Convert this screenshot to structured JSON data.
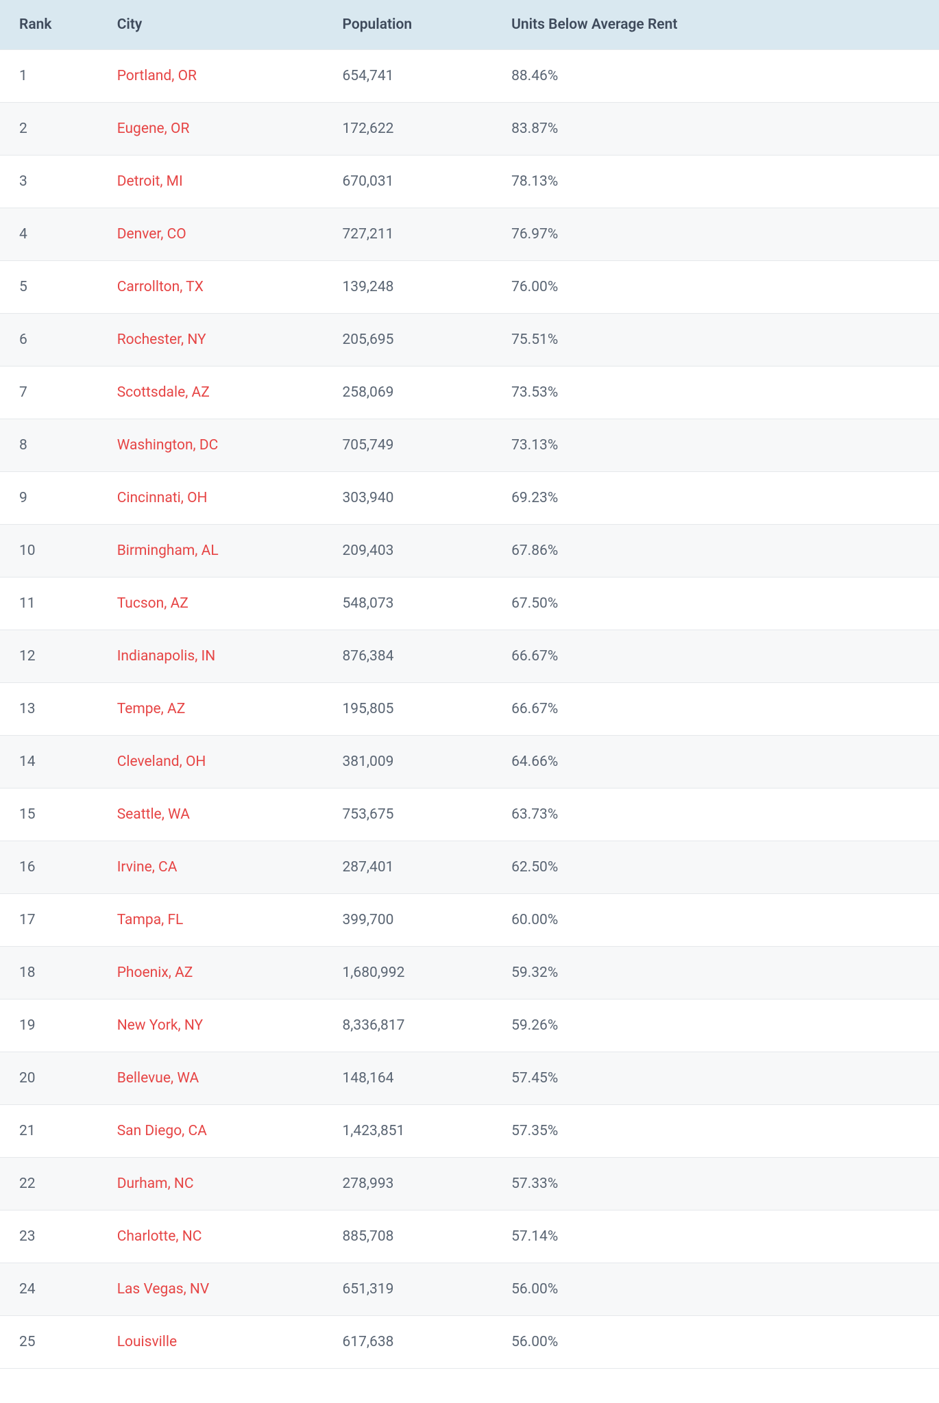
{
  "table": {
    "columns": [
      {
        "key": "rank",
        "label": "Rank"
      },
      {
        "key": "city",
        "label": "City"
      },
      {
        "key": "population",
        "label": "Population"
      },
      {
        "key": "units",
        "label": "Units Below Average Rent"
      }
    ],
    "rows": [
      {
        "rank": "1",
        "city": "Portland, OR",
        "population": "654,741",
        "units": "88.46%"
      },
      {
        "rank": "2",
        "city": "Eugene, OR",
        "population": "172,622",
        "units": "83.87%"
      },
      {
        "rank": "3",
        "city": "Detroit, MI",
        "population": "670,031",
        "units": "78.13%"
      },
      {
        "rank": "4",
        "city": "Denver, CO",
        "population": "727,211",
        "units": "76.97%"
      },
      {
        "rank": "5",
        "city": "Carrollton, TX",
        "population": "139,248",
        "units": "76.00%"
      },
      {
        "rank": "6",
        "city": "Rochester, NY",
        "population": "205,695",
        "units": "75.51%"
      },
      {
        "rank": "7",
        "city": "Scottsdale, AZ",
        "population": "258,069",
        "units": "73.53%"
      },
      {
        "rank": "8",
        "city": "Washington, DC",
        "population": "705,749",
        "units": "73.13%"
      },
      {
        "rank": "9",
        "city": "Cincinnati, OH",
        "population": "303,940",
        "units": "69.23%"
      },
      {
        "rank": "10",
        "city": "Birmingham, AL",
        "population": "209,403",
        "units": "67.86%"
      },
      {
        "rank": "11",
        "city": "Tucson, AZ",
        "population": "548,073",
        "units": "67.50%"
      },
      {
        "rank": "12",
        "city": "Indianapolis, IN",
        "population": "876,384",
        "units": "66.67%"
      },
      {
        "rank": "13",
        "city": "Tempe, AZ",
        "population": "195,805",
        "units": "66.67%"
      },
      {
        "rank": "14",
        "city": "Cleveland, OH",
        "population": "381,009",
        "units": "64.66%"
      },
      {
        "rank": "15",
        "city": "Seattle, WA",
        "population": "753,675",
        "units": "63.73%"
      },
      {
        "rank": "16",
        "city": "Irvine, CA",
        "population": "287,401",
        "units": "62.50%"
      },
      {
        "rank": "17",
        "city": "Tampa, FL",
        "population": "399,700",
        "units": "60.00%"
      },
      {
        "rank": "18",
        "city": "Phoenix, AZ",
        "population": "1,680,992",
        "units": "59.32%"
      },
      {
        "rank": "19",
        "city": "New York, NY",
        "population": "8,336,817",
        "units": "59.26%"
      },
      {
        "rank": "20",
        "city": "Bellevue, WA",
        "population": "148,164",
        "units": "57.45%"
      },
      {
        "rank": "21",
        "city": "San Diego, CA",
        "population": "1,423,851",
        "units": "57.35%"
      },
      {
        "rank": "22",
        "city": "Durham, NC",
        "population": "278,993",
        "units": "57.33%"
      },
      {
        "rank": "23",
        "city": "Charlotte, NC",
        "population": "885,708",
        "units": "57.14%"
      },
      {
        "rank": "24",
        "city": "Las Vegas, NV",
        "population": "651,319",
        "units": "56.00%"
      },
      {
        "rank": "25",
        "city": "Louisville",
        "population": "617,638",
        "units": "56.00%"
      }
    ],
    "styling": {
      "header_bg": "#d9e8f0",
      "header_text_color": "#3e4a5b",
      "row_even_bg": "#f7f8f9",
      "row_odd_bg": "#ffffff",
      "border_color": "#e5e8eb",
      "text_color": "#5a6573",
      "link_color": "#e64545",
      "font_size": 21,
      "cell_padding_v": 26,
      "cell_padding_h": 20,
      "column_widths": [
        "11%",
        "24%",
        "18%",
        "47%"
      ]
    }
  }
}
